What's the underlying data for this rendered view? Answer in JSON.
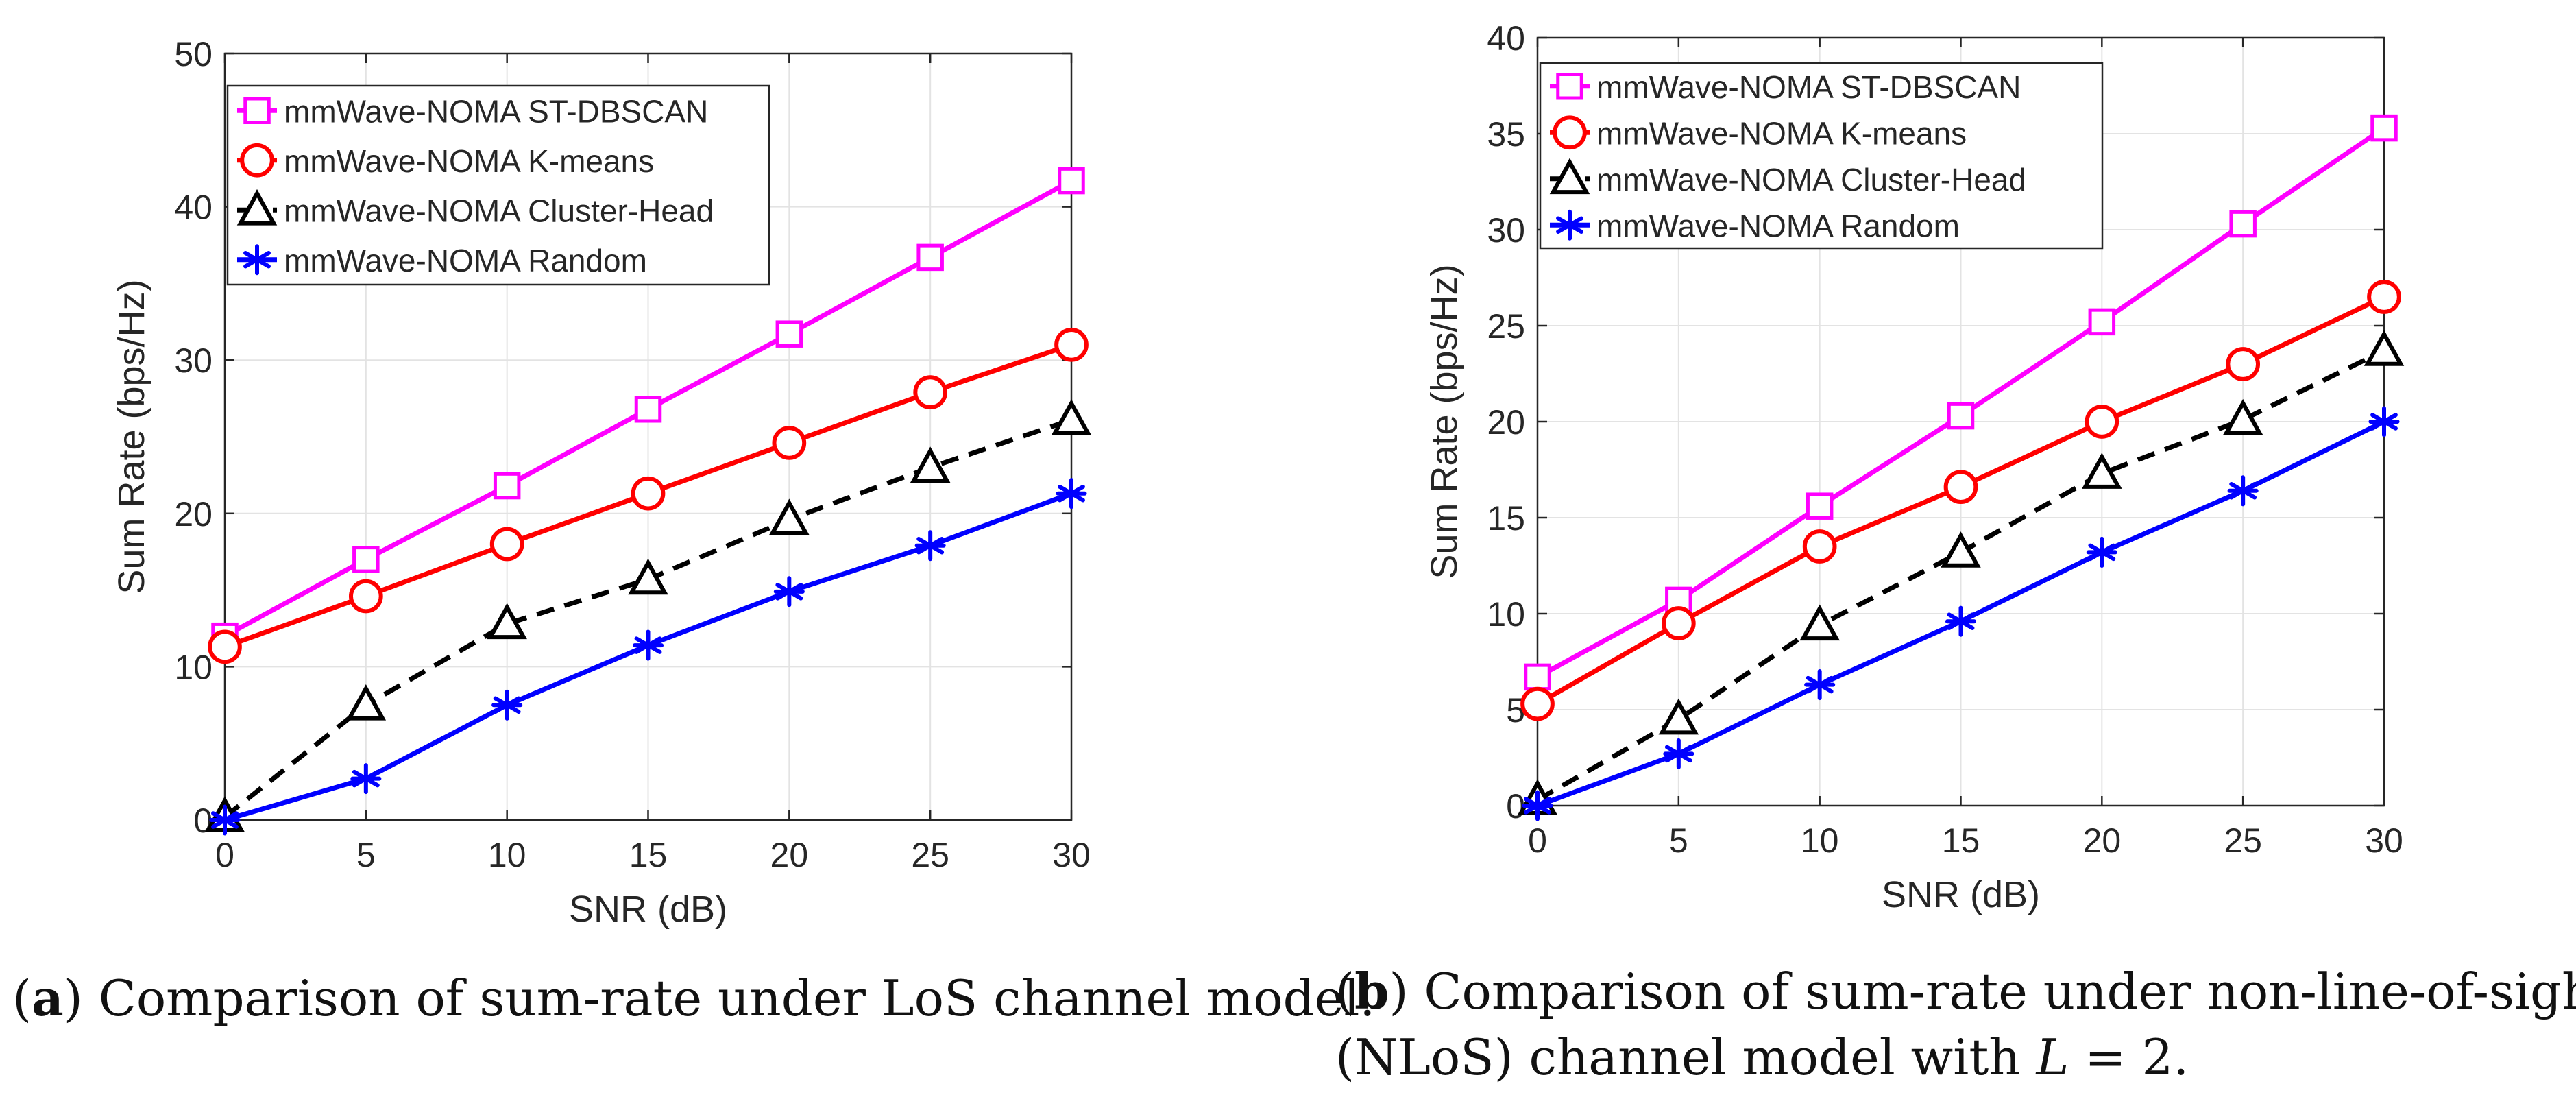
{
  "chart_data": [
    {
      "type": "line",
      "xlabel": "SNR (dB)",
      "ylabel": "Sum Rate (bps/Hz)",
      "xlim": [
        0,
        30
      ],
      "ylim": [
        0,
        50
      ],
      "xticks": [
        "0",
        "5",
        "10",
        "15",
        "20",
        "25",
        "30"
      ],
      "yticks": [
        "0",
        "10",
        "20",
        "30",
        "40",
        "50"
      ],
      "grid": true,
      "legend_position": "top-left",
      "x": [
        0,
        5,
        10,
        15,
        20,
        25,
        30
      ],
      "series": [
        {
          "name": "mmWave-NOMA ST-DBSCAN",
          "color": "#ff00ff",
          "marker": "square",
          "dash": "solid",
          "values": [
            12.0,
            17.0,
            21.8,
            26.8,
            31.7,
            36.7,
            41.7
          ]
        },
        {
          "name": "mmWave-NOMA K-means",
          "color": "#ff0000",
          "marker": "circle",
          "dash": "solid",
          "values": [
            11.3,
            14.6,
            18.0,
            21.3,
            24.6,
            27.9,
            31.0
          ]
        },
        {
          "name": "mmWave-NOMA Cluster-Head",
          "color": "#000000",
          "marker": "triangle",
          "dash": "dashed",
          "values": [
            0.2,
            7.5,
            12.8,
            15.7,
            19.6,
            23.0,
            26.1
          ]
        },
        {
          "name": "mmWave-NOMA Random",
          "color": "#0000ff",
          "marker": "asterisk",
          "dash": "solid",
          "values": [
            0.0,
            2.7,
            7.5,
            11.4,
            14.9,
            17.9,
            21.3
          ]
        }
      ]
    },
    {
      "type": "line",
      "xlabel": "SNR (dB)",
      "ylabel": "Sum Rate (bps/Hz)",
      "xlim": [
        0,
        30
      ],
      "ylim": [
        0,
        40
      ],
      "xticks": [
        "0",
        "5",
        "10",
        "15",
        "20",
        "25",
        "30"
      ],
      "yticks": [
        "0",
        "5",
        "10",
        "15",
        "20",
        "25",
        "30",
        "35",
        "40"
      ],
      "grid": true,
      "legend_position": "top-left",
      "x": [
        0,
        5,
        10,
        15,
        20,
        25,
        30
      ],
      "series": [
        {
          "name": "mmWave-NOMA ST-DBSCAN",
          "color": "#ff00ff",
          "marker": "square",
          "dash": "solid",
          "values": [
            6.7,
            10.7,
            15.6,
            20.3,
            25.2,
            30.3,
            35.3
          ]
        },
        {
          "name": "mmWave-NOMA K-means",
          "color": "#ff0000",
          "marker": "circle",
          "dash": "solid",
          "values": [
            5.3,
            9.5,
            13.5,
            16.6,
            20.0,
            23.0,
            26.5
          ]
        },
        {
          "name": "mmWave-NOMA Cluster-Head",
          "color": "#000000",
          "marker": "triangle",
          "dash": "dashed",
          "values": [
            0.3,
            4.5,
            9.4,
            13.2,
            17.3,
            20.1,
            23.7
          ]
        },
        {
          "name": "mmWave-NOMA Random",
          "color": "#0000ff",
          "marker": "asterisk",
          "dash": "solid",
          "values": [
            0.0,
            2.7,
            6.3,
            9.6,
            13.2,
            16.4,
            20.0
          ]
        }
      ]
    }
  ],
  "captions": {
    "a": {
      "label": "a",
      "text": " Comparison of sum-rate under LoS channel model."
    },
    "b": {
      "label": "b",
      "line1": " Comparison of sum-rate under non-line-of-sight",
      "line2_pre": "(NLoS) channel model with ",
      "var": "L",
      "line2_post": " = 2."
    }
  }
}
